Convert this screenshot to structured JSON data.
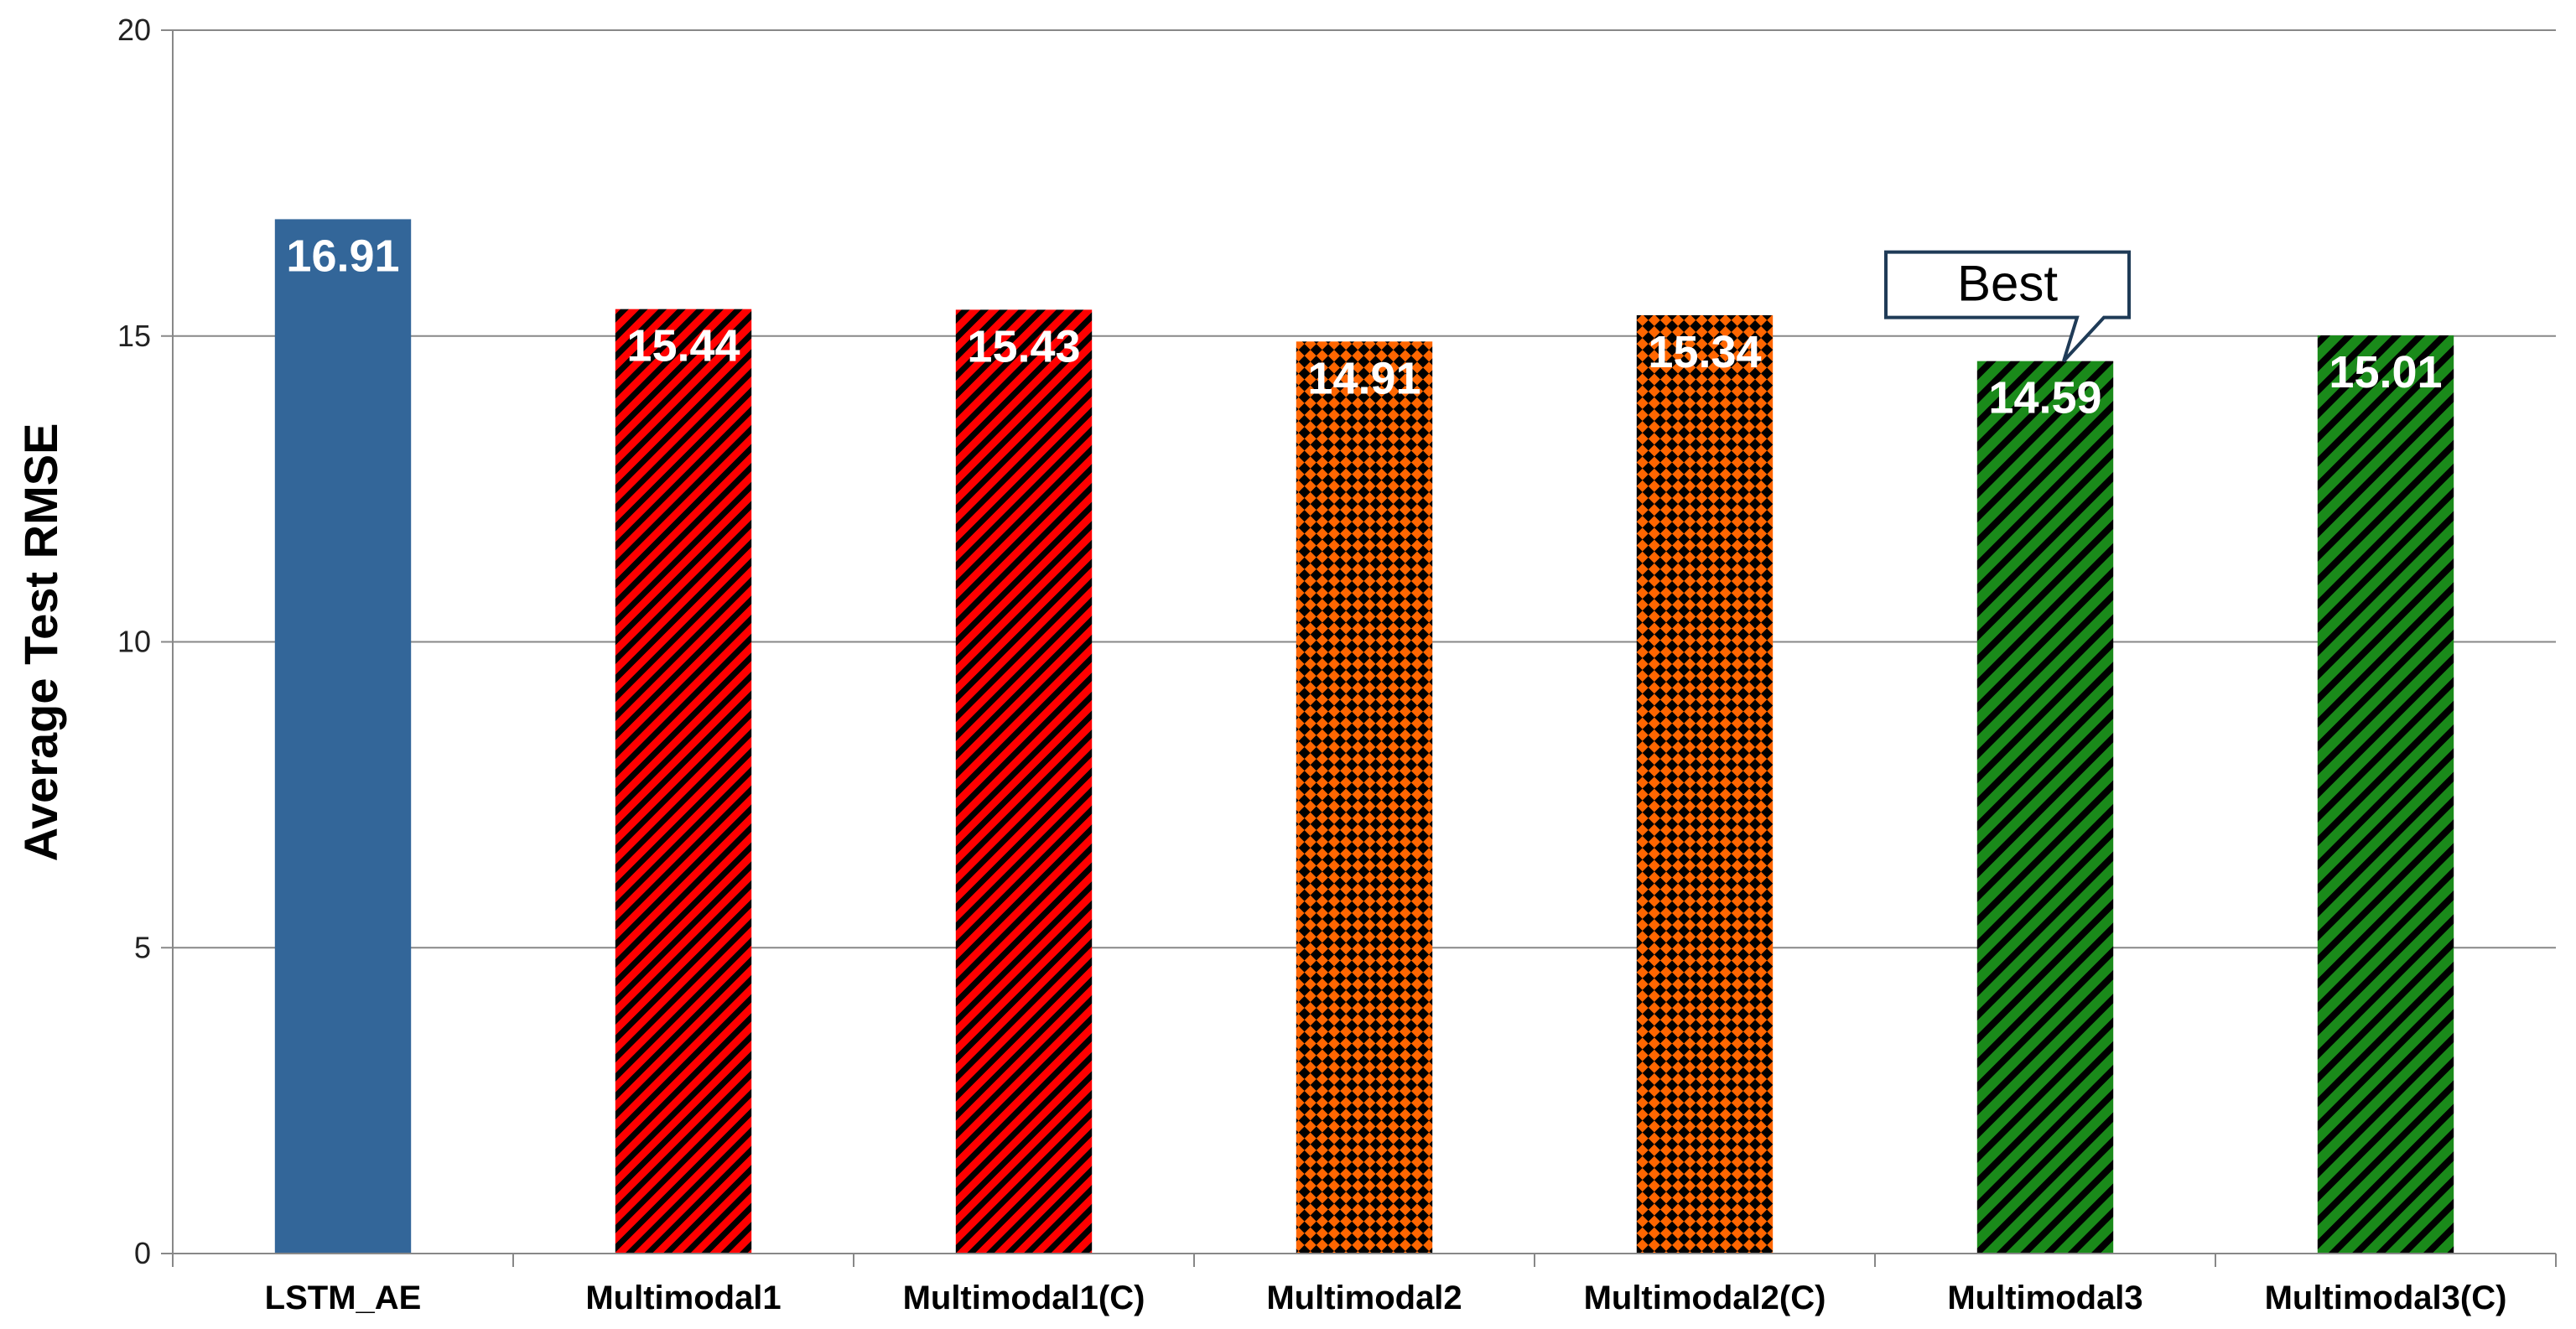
{
  "chart_data": {
    "type": "bar",
    "title": "",
    "xlabel": "",
    "ylabel": "Average Test RMSE",
    "ylim": [
      0,
      20
    ],
    "yticks": [
      0,
      5,
      10,
      15,
      20
    ],
    "grid": true,
    "categories": [
      "LSTM_AE",
      "Multimodal1",
      "Multimodal1(C)",
      "Multimodal2",
      "Multimodal2(C)",
      "Multimodal3",
      "Multimodal3(C)"
    ],
    "values": [
      16.91,
      15.44,
      15.43,
      14.91,
      15.34,
      14.59,
      15.01
    ],
    "data_labels": [
      "16.91",
      "15.44",
      "15.43",
      "14.91",
      "15.34",
      "14.59",
      "15.01"
    ],
    "bar_styles": [
      {
        "fill": "#336699",
        "pattern": "solid"
      },
      {
        "fill": "#ff0000",
        "pattern": "diagonal-stripes"
      },
      {
        "fill": "#ff0000",
        "pattern": "diagonal-stripes"
      },
      {
        "fill": "#ff6600",
        "pattern": "diamond-checker"
      },
      {
        "fill": "#ff6600",
        "pattern": "diamond-checker"
      },
      {
        "fill": "#1a8a1a",
        "pattern": "diagonal-stripes-wide"
      },
      {
        "fill": "#1a8a1a",
        "pattern": "diagonal-stripes-wide"
      }
    ],
    "annotations": [
      {
        "text": "Best",
        "target": "Multimodal3"
      }
    ],
    "colors": {
      "axis": "#888888",
      "grid": "#888888",
      "pattern_dark": "#000000"
    }
  }
}
